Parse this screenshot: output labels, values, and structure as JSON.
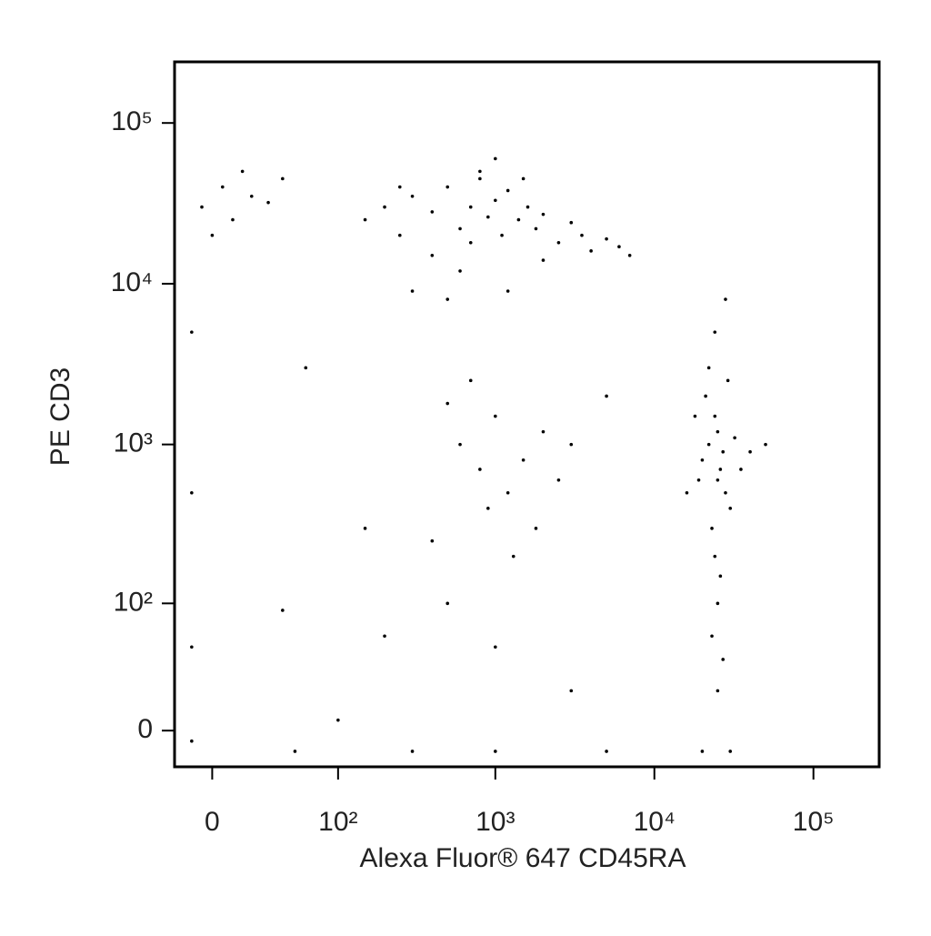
{
  "chart_data": {
    "type": "scatter",
    "scale": "logicle",
    "color": "#000000",
    "xlabel": "Alexa Fluor® 647 CD45RA",
    "ylabel": "PE CD3",
    "xlim": [
      -19,
      259000
    ],
    "ylim": [
      -18,
      240000
    ],
    "xticks": [
      0,
      {
        "value": 100,
        "label": "10²"
      },
      {
        "value": 1000,
        "label": "10³"
      },
      {
        "value": 10000,
        "label": "10⁴"
      },
      {
        "value": 100000,
        "label": "10⁵"
      }
    ],
    "yticks": [
      0,
      {
        "value": 100,
        "label": "10²"
      },
      {
        "value": 1000,
        "label": "10³"
      },
      {
        "value": 10000,
        "label": "10⁴"
      },
      {
        "value": 100000,
        "label": "10⁵"
      }
    ],
    "x": [
      150,
      200,
      250,
      300,
      400,
      500,
      600,
      700,
      800,
      900,
      1000,
      1100,
      1200,
      1400,
      1600,
      1800,
      2000,
      2500,
      3000,
      3500,
      4000,
      5000,
      6000,
      7000,
      400,
      600,
      800,
      1000,
      1500,
      2000,
      300,
      500,
      1200,
      250,
      700,
      -5,
      5,
      10,
      20,
      30,
      40,
      0,
      15,
      20000,
      25000,
      22000,
      28000,
      24000,
      26000,
      30000,
      21000,
      23000,
      27000,
      25000,
      19000,
      32000,
      24000,
      26000,
      22000,
      29000,
      25000,
      23000,
      27000,
      25000,
      18000,
      35000,
      40000,
      16000,
      24000,
      28000,
      50000,
      600,
      800,
      1000,
      1200,
      1500,
      2000,
      700,
      1800,
      900,
      2500,
      3000,
      500,
      400,
      1300,
      5000,
      100,
      200,
      40,
      60,
      500,
      1000,
      3000,
      150,
      50,
      300,
      1000,
      5000,
      20000,
      30000,
      -10,
      -10,
      -10,
      -10
    ],
    "y": [
      25000,
      30000,
      20000,
      35000,
      28000,
      40000,
      22000,
      30000,
      45000,
      26000,
      33000,
      20000,
      38000,
      25000,
      30000,
      22000,
      27000,
      18000,
      24000,
      20000,
      16000,
      19000,
      17000,
      15000,
      15000,
      12000,
      50000,
      60000,
      45000,
      14000,
      9000,
      8000,
      9000,
      40000,
      18000,
      30000,
      40000,
      25000,
      35000,
      32000,
      45000,
      20000,
      50000,
      800,
      600,
      1000,
      500,
      1500,
      700,
      400,
      2000,
      300,
      900,
      1200,
      600,
      1100,
      200,
      150,
      3000,
      2500,
      100,
      60,
      40,
      20,
      1500,
      700,
      900,
      500,
      5000,
      8000,
      1000,
      1000,
      700,
      1500,
      500,
      800,
      1200,
      2500,
      300,
      400,
      600,
      1000,
      1800,
      250,
      200,
      2000,
      5,
      60,
      90,
      3000,
      100,
      50,
      20,
      300,
      -10,
      -10,
      -10,
      -10,
      -10,
      -10,
      5000,
      500,
      50,
      -5
    ]
  }
}
